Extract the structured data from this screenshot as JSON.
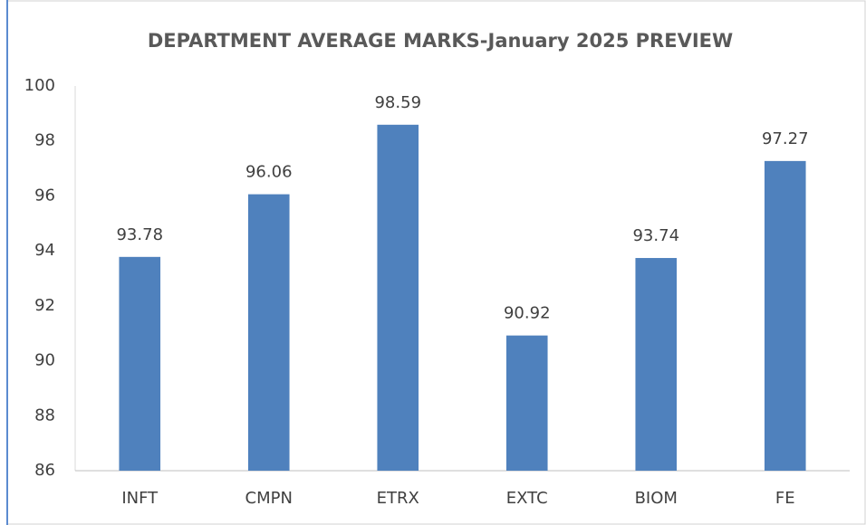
{
  "chart_data": {
    "type": "bar",
    "title": "DEPARTMENT AVERAGE MARKS-January 2025 PREVIEW",
    "categories": [
      "INFT",
      "CMPN",
      "ETRX",
      "EXTC",
      "BIOM",
      "FE"
    ],
    "values": [
      93.78,
      96.06,
      98.59,
      90.92,
      93.74,
      97.27
    ],
    "color": "#4f81bd",
    "ylim": [
      86,
      100
    ],
    "yticks": [
      86,
      88,
      90,
      92,
      94,
      96,
      98,
      100
    ],
    "grid": false,
    "data_labels": true
  }
}
